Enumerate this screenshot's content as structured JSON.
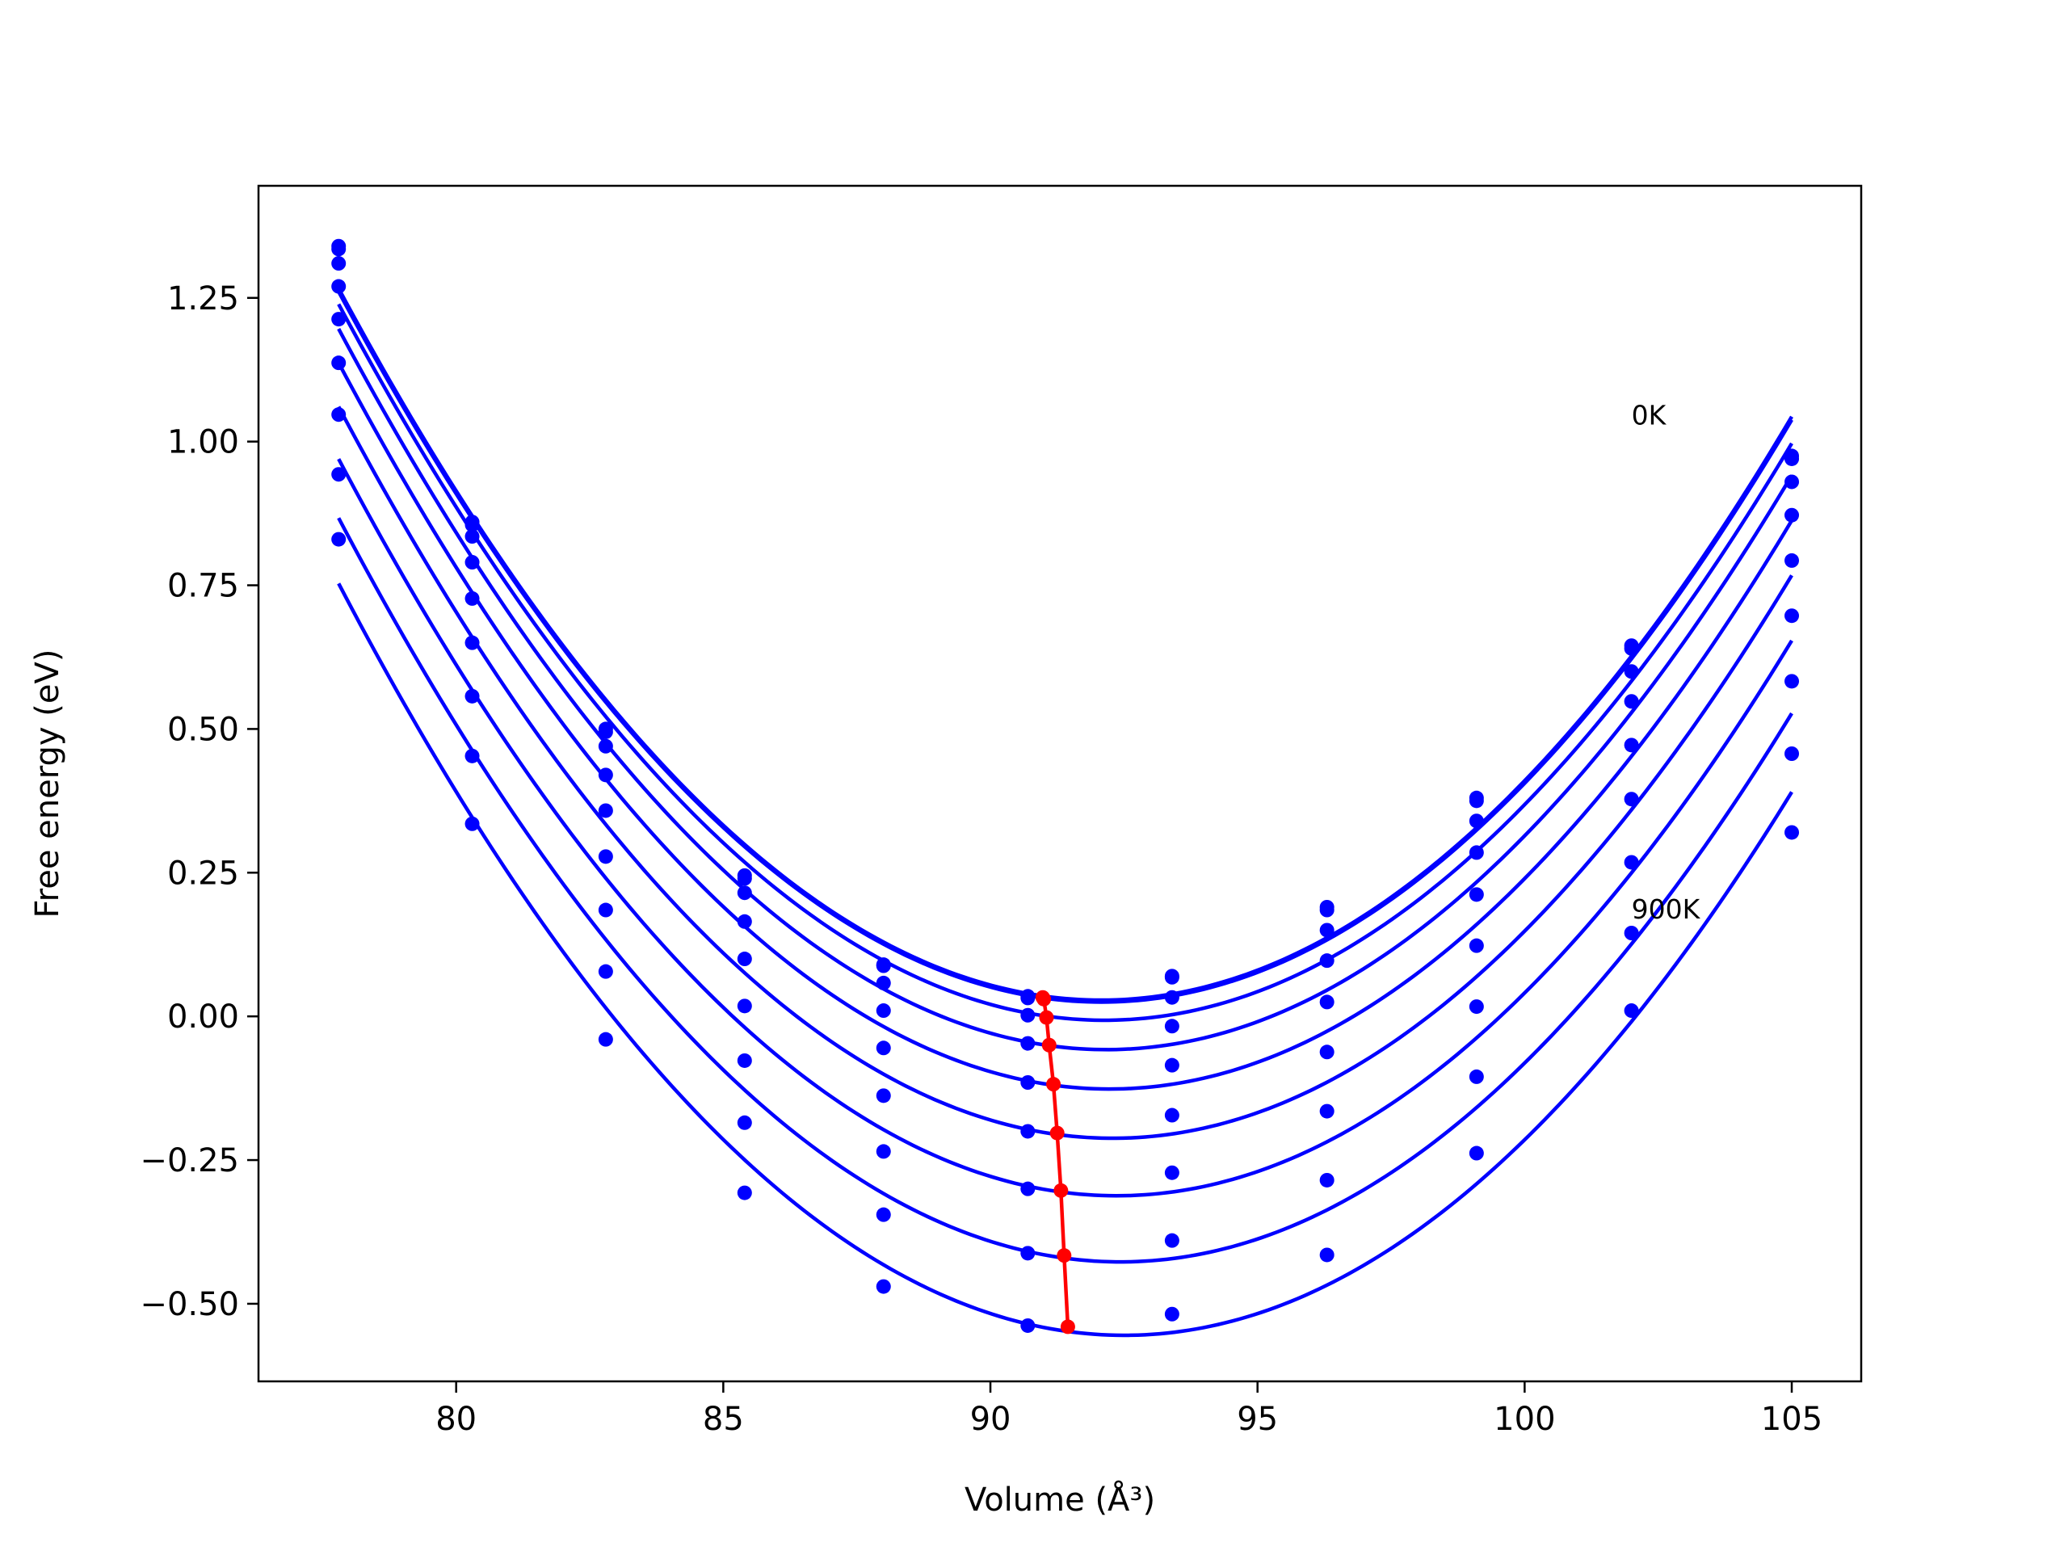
{
  "chart_data": {
    "type": "line",
    "title": "",
    "xlabel": "Volume (Å³)",
    "ylabel": "Free energy (eV)",
    "xlim": [
      76.3,
      106.3
    ],
    "ylim": [
      -0.635,
      1.445
    ],
    "xticks": [
      80,
      85,
      90,
      95,
      100,
      105
    ],
    "xtick_labels": [
      "80",
      "85",
      "90",
      "95",
      "100",
      "105"
    ],
    "yticks": [
      -0.5,
      -0.25,
      0.0,
      0.25,
      0.5,
      0.75,
      1.0,
      1.25
    ],
    "ytick_labels": [
      "−0.50",
      "−0.25",
      "0.00",
      "0.25",
      "0.50",
      "0.75",
      "1.00",
      "1.25"
    ],
    "grid": false,
    "legend": "none",
    "colors": {
      "curves": "#0000ff",
      "minima": "#ff0000"
    },
    "annotations": [
      {
        "text": "0K",
        "x": 102.0,
        "y": 1.03
      },
      {
        "text": "900K",
        "x": 102.0,
        "y": 0.17
      }
    ],
    "x": [
      77.8,
      80.3,
      82.8,
      85.4,
      88.0,
      90.7,
      93.4,
      96.3,
      99.1,
      102.0,
      105.0
    ],
    "series": [
      {
        "values": [
          1.34,
          0.86,
          0.5,
          0.245,
          0.09,
          0.035,
          0.07,
          0.19,
          0.38,
          0.645,
          0.975
        ]
      },
      {
        "values": [
          1.335,
          0.855,
          0.495,
          0.24,
          0.088,
          0.032,
          0.068,
          0.185,
          0.375,
          0.64,
          0.97
        ]
      },
      {
        "values": [
          1.31,
          0.835,
          0.47,
          0.215,
          0.058,
          0.002,
          0.033,
          0.15,
          0.34,
          0.6,
          0.93
        ]
      },
      {
        "values": [
          1.27,
          0.79,
          0.42,
          0.165,
          0.01,
          -0.047,
          -0.017,
          0.097,
          0.285,
          0.548,
          0.872
        ]
      },
      {
        "values": [
          1.213,
          0.727,
          0.358,
          0.1,
          -0.055,
          -0.115,
          -0.085,
          0.025,
          0.212,
          0.472,
          0.793
        ]
      },
      {
        "values": [
          1.137,
          0.65,
          0.278,
          0.018,
          -0.138,
          -0.2,
          -0.172,
          -0.062,
          0.123,
          0.378,
          0.697
        ]
      },
      {
        "values": [
          1.047,
          0.557,
          0.185,
          -0.077,
          -0.235,
          -0.3,
          -0.272,
          -0.165,
          0.017,
          0.268,
          0.583
        ]
      },
      {
        "values": [
          0.943,
          0.453,
          0.078,
          -0.185,
          -0.345,
          -0.412,
          -0.39,
          -0.285,
          -0.105,
          0.145,
          0.457
        ]
      },
      {
        "values": [
          0.83,
          0.335,
          -0.04,
          -0.307,
          -0.47,
          -0.538,
          -0.518,
          -0.415,
          -0.238,
          0.01,
          0.32
        ]
      }
    ],
    "minima": {
      "x": [
        90.98,
        91.0,
        91.05,
        91.1,
        91.18,
        91.25,
        91.32,
        91.38,
        91.45
      ],
      "y": [
        0.033,
        0.03,
        -0.002,
        -0.05,
        -0.118,
        -0.203,
        -0.303,
        -0.416,
        -0.54
      ]
    }
  }
}
